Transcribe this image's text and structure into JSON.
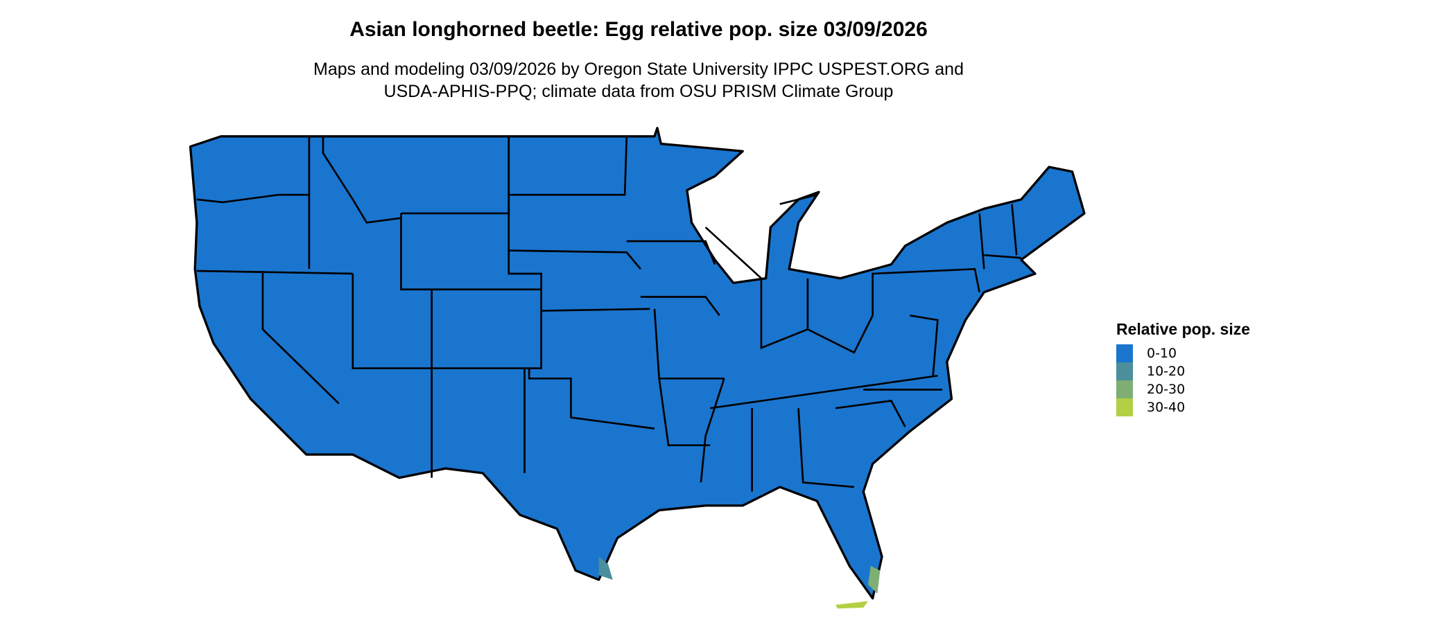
{
  "title": "Asian longhorned beetle: Egg relative pop. size 03/09/2026",
  "subtitle_lines": [
    "Maps and modeling 03/09/2026 by Oregon State University IPPC USPEST.ORG and",
    "USDA-APHIS-PPQ; climate data from OSU PRISM Climate Group"
  ],
  "map": {
    "region": "Contiguous United States",
    "base_fill_color": "#1a75cf",
    "border_color": "#000000"
  },
  "legend": {
    "title": "Relative pop. size",
    "items": [
      {
        "label": "0-10",
        "color": "#1a75cf"
      },
      {
        "label": "10-20",
        "color": "#4a8f9b"
      },
      {
        "label": "20-30",
        "color": "#7eae73"
      },
      {
        "label": "30-40",
        "color": "#b3cf43"
      }
    ]
  }
}
